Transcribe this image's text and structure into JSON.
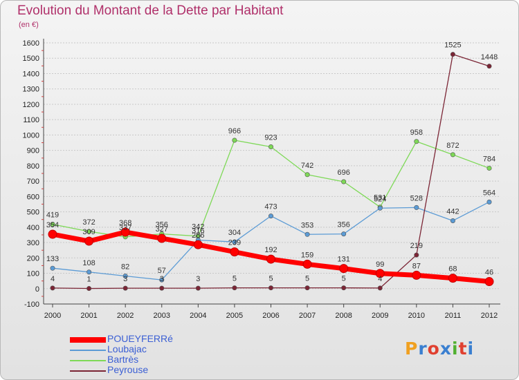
{
  "title": "Evolution du Montant de la Dette par Habitant",
  "unit_label": "(en €)",
  "logo": {
    "text": "Proxiti",
    "colors": [
      "#f0a020",
      "#3a7fd0",
      "#e04030",
      "#3a7fd0",
      "#50b030",
      "#e04030",
      "#3a7fd0"
    ]
  },
  "chart_data": {
    "type": "line",
    "title": "Evolution du Montant de la Dette par Habitant",
    "ylabel": "(en €)",
    "x": [
      2000,
      2001,
      2002,
      2003,
      2004,
      2005,
      2006,
      2007,
      2008,
      2009,
      2010,
      2011,
      2012
    ],
    "ylim": [
      -100,
      1600
    ],
    "yticks": [
      -100,
      0,
      100,
      200,
      300,
      400,
      500,
      600,
      700,
      800,
      900,
      1000,
      1100,
      1200,
      1300,
      1400,
      1500,
      1600
    ],
    "grid": "horizontal-dashed",
    "legend_position": "bottom-left",
    "series": [
      {
        "name": "POUEYFERRé",
        "color": "#ff0000",
        "values": [
          354,
          309,
          368,
          327,
          286,
          239,
          192,
          159,
          131,
          99,
          87,
          68,
          46
        ]
      },
      {
        "name": "Loubajac",
        "color": "#5b9bd5",
        "values": [
          133,
          108,
          82,
          57,
          316,
          304,
          473,
          353,
          356,
          524,
          528,
          442,
          564
        ]
      },
      {
        "name": "Bartrès",
        "color": "#7ed957",
        "values": [
          419,
          372,
          337,
          356,
          342,
          966,
          923,
          742,
          696,
          531,
          958,
          872,
          784
        ]
      },
      {
        "name": "Peyrouse",
        "color": "#7b2535",
        "values": [
          4,
          1,
          3,
          3,
          3,
          5,
          5,
          5,
          5,
          4,
          219,
          1525,
          1448
        ]
      }
    ]
  }
}
